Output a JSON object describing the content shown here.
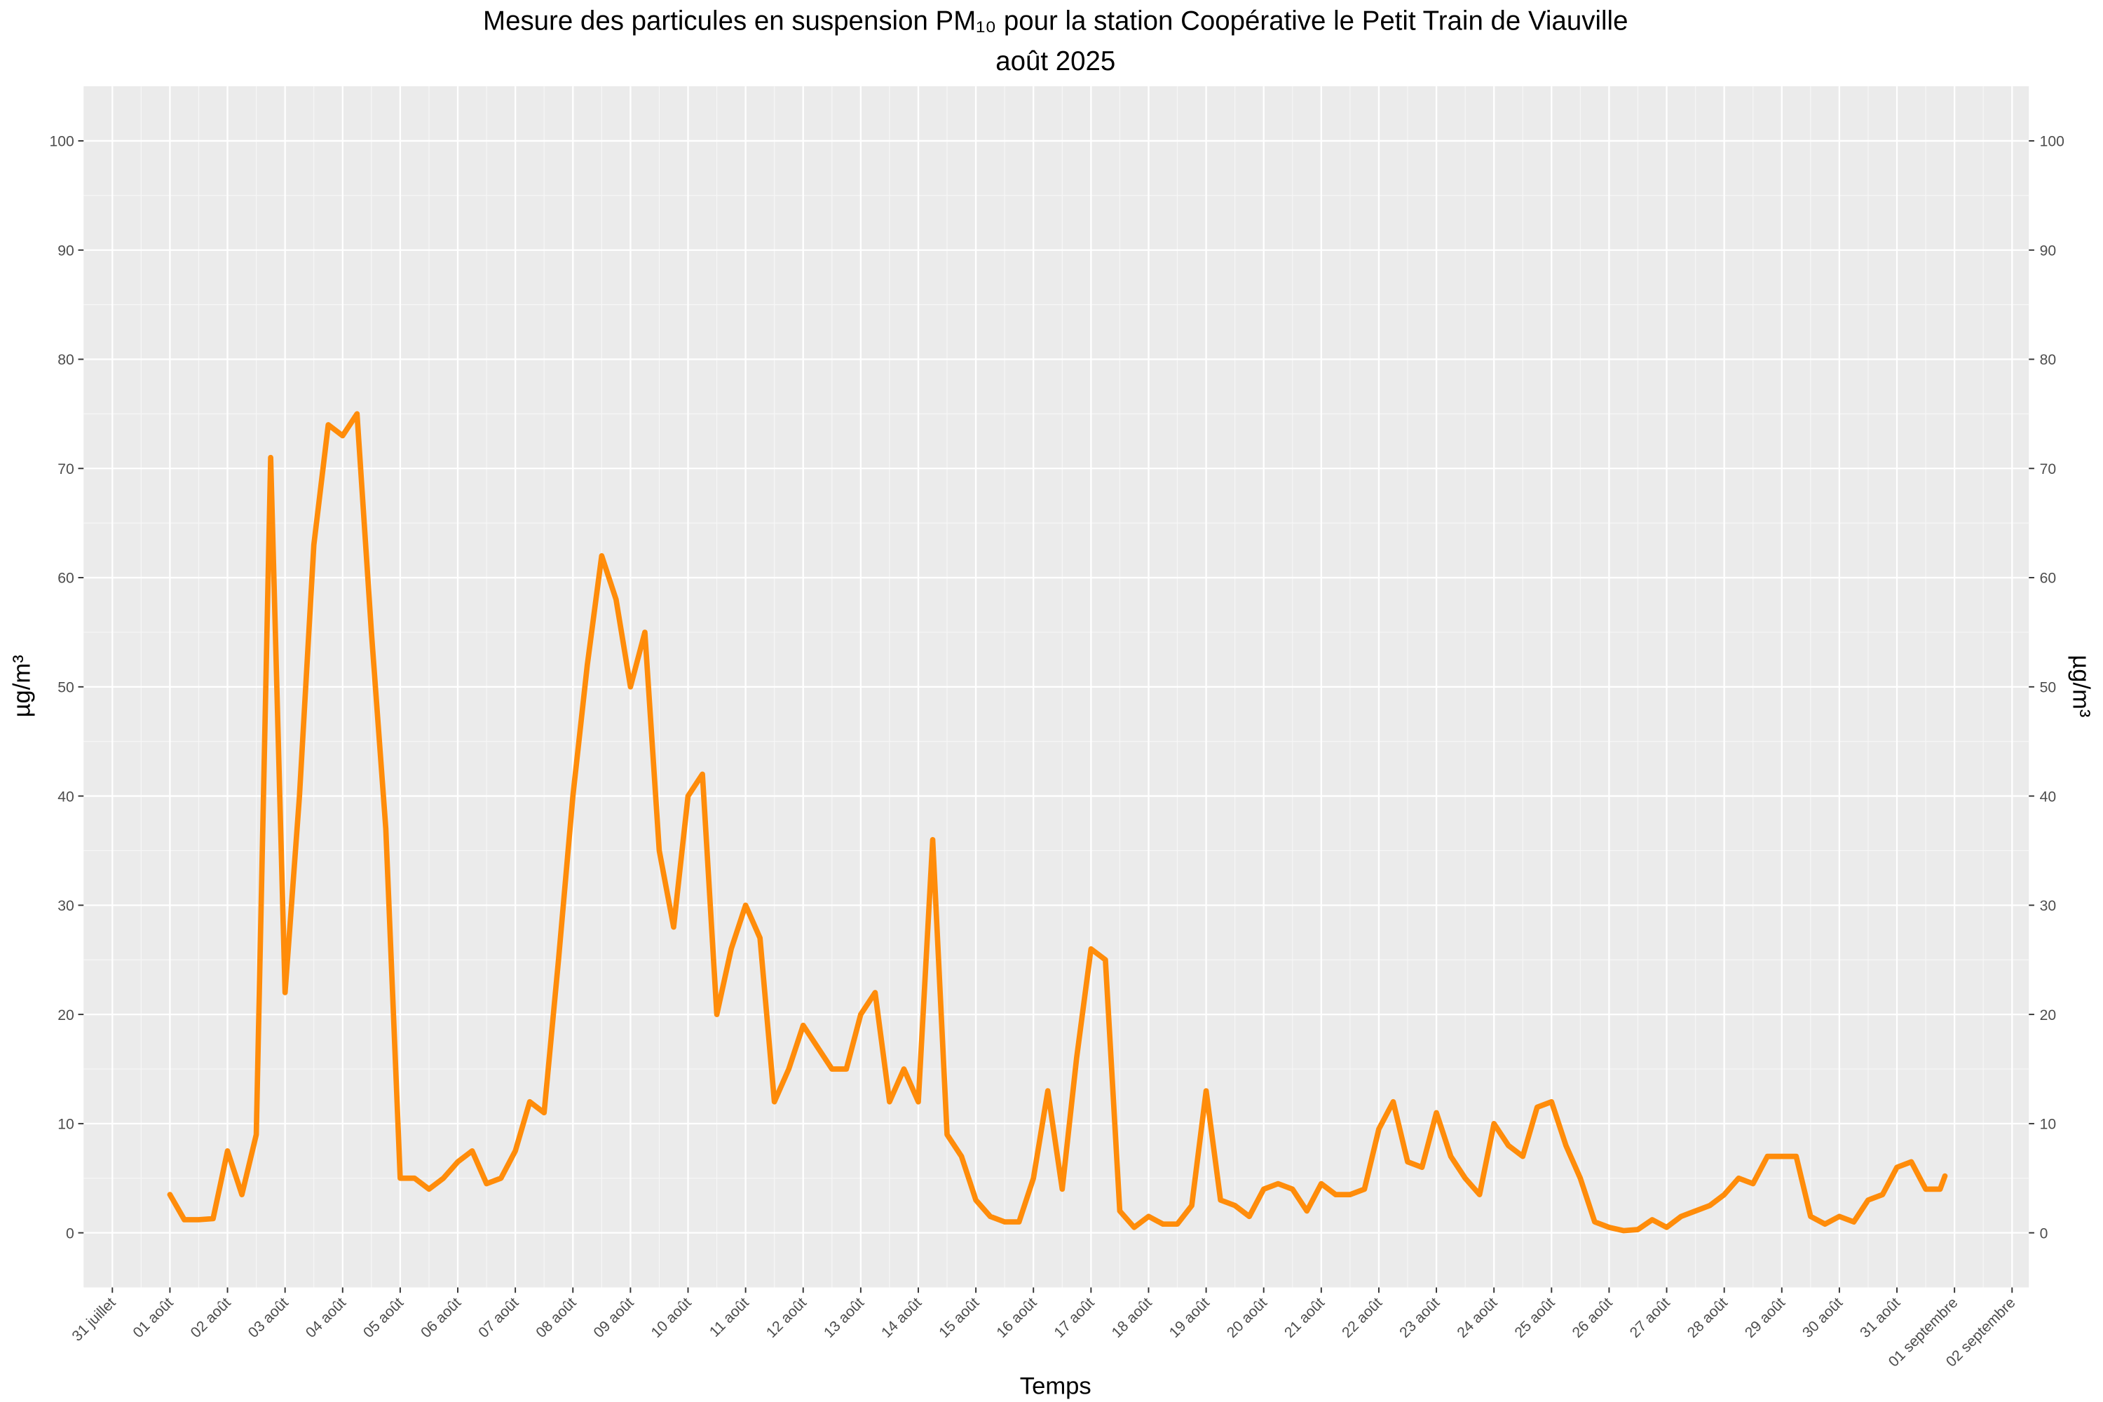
{
  "chart_data": {
    "type": "line",
    "title": "Mesure des particules en suspension  PM₁₀  pour la station Coopérative le Petit Train de Viauville",
    "subtitle": "août 2025",
    "xlabel": "Temps",
    "ylabel": "µg/m³",
    "y2label": "µg/m³",
    "color": "#ff8c0a",
    "grid": true,
    "xlim": [
      "2025-07-30T12:00",
      "2025-09-02T07:00"
    ],
    "xticks": [
      {
        "value": "2025-07-31",
        "label": "31 juillet"
      },
      {
        "value": "2025-08-01",
        "label": "01 août"
      },
      {
        "value": "2025-08-02",
        "label": "02 août"
      },
      {
        "value": "2025-08-03",
        "label": "03 août"
      },
      {
        "value": "2025-08-04",
        "label": "04 août"
      },
      {
        "value": "2025-08-05",
        "label": "05 août"
      },
      {
        "value": "2025-08-06",
        "label": "06 août"
      },
      {
        "value": "2025-08-07",
        "label": "07 août"
      },
      {
        "value": "2025-08-08",
        "label": "08 août"
      },
      {
        "value": "2025-08-09",
        "label": "09 août"
      },
      {
        "value": "2025-08-10",
        "label": "10 août"
      },
      {
        "value": "2025-08-11",
        "label": "11 août"
      },
      {
        "value": "2025-08-12",
        "label": "12 août"
      },
      {
        "value": "2025-08-13",
        "label": "13 août"
      },
      {
        "value": "2025-08-14",
        "label": "14 août"
      },
      {
        "value": "2025-08-15",
        "label": "15 août"
      },
      {
        "value": "2025-08-16",
        "label": "16 août"
      },
      {
        "value": "2025-08-17",
        "label": "17 août"
      },
      {
        "value": "2025-08-18",
        "label": "18 août"
      },
      {
        "value": "2025-08-19",
        "label": "19 août"
      },
      {
        "value": "2025-08-20",
        "label": "20 août"
      },
      {
        "value": "2025-08-21",
        "label": "21 août"
      },
      {
        "value": "2025-08-22",
        "label": "22 août"
      },
      {
        "value": "2025-08-23",
        "label": "23 août"
      },
      {
        "value": "2025-08-24",
        "label": "24 août"
      },
      {
        "value": "2025-08-25",
        "label": "25 août"
      },
      {
        "value": "2025-08-26",
        "label": "26 août"
      },
      {
        "value": "2025-08-27",
        "label": "27 août"
      },
      {
        "value": "2025-08-28",
        "label": "28 août"
      },
      {
        "value": "2025-08-29",
        "label": "29 août"
      },
      {
        "value": "2025-08-30",
        "label": "30 août"
      },
      {
        "value": "2025-08-31",
        "label": "31 août"
      },
      {
        "value": "2025-09-01",
        "label": "01 septembre"
      },
      {
        "value": "2025-09-02",
        "label": "02 septembre"
      }
    ],
    "ylim": [
      -5,
      105
    ],
    "yticks": [
      0,
      10,
      20,
      30,
      40,
      50,
      60,
      70,
      80,
      90,
      100
    ],
    "y2lim": [
      -5,
      105
    ],
    "y2ticks": [
      0,
      10,
      20,
      30,
      40,
      50,
      60,
      70,
      80,
      90,
      100
    ],
    "x": [
      "2025-08-01T00:00",
      "2025-08-01T06:00",
      "2025-08-01T12:00",
      "2025-08-01T18:00",
      "2025-08-02T00:00",
      "2025-08-02T06:00",
      "2025-08-02T12:00",
      "2025-08-02T18:00",
      "2025-08-03T00:00",
      "2025-08-03T06:00",
      "2025-08-03T12:00",
      "2025-08-03T18:00",
      "2025-08-04T00:00",
      "2025-08-04T06:00",
      "2025-08-04T12:00",
      "2025-08-04T18:00",
      "2025-08-05T00:00",
      "2025-08-05T06:00",
      "2025-08-05T12:00",
      "2025-08-05T18:00",
      "2025-08-06T00:00",
      "2025-08-06T06:00",
      "2025-08-06T12:00",
      "2025-08-06T18:00",
      "2025-08-07T00:00",
      "2025-08-07T06:00",
      "2025-08-07T12:00",
      "2025-08-07T18:00",
      "2025-08-08T00:00",
      "2025-08-08T06:00",
      "2025-08-08T12:00",
      "2025-08-08T18:00",
      "2025-08-09T00:00",
      "2025-08-09T06:00",
      "2025-08-09T12:00",
      "2025-08-09T18:00",
      "2025-08-10T00:00",
      "2025-08-10T06:00",
      "2025-08-10T12:00",
      "2025-08-10T18:00",
      "2025-08-11T00:00",
      "2025-08-11T06:00",
      "2025-08-11T12:00",
      "2025-08-11T18:00",
      "2025-08-12T00:00",
      "2025-08-12T06:00",
      "2025-08-12T12:00",
      "2025-08-12T18:00",
      "2025-08-13T00:00",
      "2025-08-13T06:00",
      "2025-08-13T12:00",
      "2025-08-13T18:00",
      "2025-08-14T00:00",
      "2025-08-14T06:00",
      "2025-08-14T12:00",
      "2025-08-14T18:00",
      "2025-08-15T00:00",
      "2025-08-15T06:00",
      "2025-08-15T12:00",
      "2025-08-15T18:00",
      "2025-08-16T00:00",
      "2025-08-16T06:00",
      "2025-08-16T12:00",
      "2025-08-16T18:00",
      "2025-08-17T00:00",
      "2025-08-17T06:00",
      "2025-08-17T12:00",
      "2025-08-17T18:00",
      "2025-08-18T00:00",
      "2025-08-18T06:00",
      "2025-08-18T12:00",
      "2025-08-18T18:00",
      "2025-08-19T00:00",
      "2025-08-19T06:00",
      "2025-08-19T12:00",
      "2025-08-19T18:00",
      "2025-08-20T00:00",
      "2025-08-20T06:00",
      "2025-08-20T12:00",
      "2025-08-20T18:00",
      "2025-08-21T00:00",
      "2025-08-21T06:00",
      "2025-08-21T12:00",
      "2025-08-21T18:00",
      "2025-08-22T00:00",
      "2025-08-22T06:00",
      "2025-08-22T12:00",
      "2025-08-22T18:00",
      "2025-08-23T00:00",
      "2025-08-23T06:00",
      "2025-08-23T12:00",
      "2025-08-23T18:00",
      "2025-08-24T00:00",
      "2025-08-24T06:00",
      "2025-08-24T12:00",
      "2025-08-24T18:00",
      "2025-08-25T00:00",
      "2025-08-25T06:00",
      "2025-08-25T12:00",
      "2025-08-25T18:00",
      "2025-08-26T00:00",
      "2025-08-26T06:00",
      "2025-08-26T12:00",
      "2025-08-26T18:00",
      "2025-08-27T00:00",
      "2025-08-27T06:00",
      "2025-08-27T12:00",
      "2025-08-27T18:00",
      "2025-08-28T00:00",
      "2025-08-28T06:00",
      "2025-08-28T12:00",
      "2025-08-28T18:00",
      "2025-08-29T00:00",
      "2025-08-29T06:00",
      "2025-08-29T12:00",
      "2025-08-29T18:00",
      "2025-08-30T00:00",
      "2025-08-30T06:00",
      "2025-08-30T12:00",
      "2025-08-30T18:00",
      "2025-08-31T00:00",
      "2025-08-31T06:00",
      "2025-08-31T12:00",
      "2025-08-31T18:00",
      "2025-08-31T20:00"
    ],
    "values": [
      3.5,
      1.2,
      1.2,
      1.3,
      7.5,
      3.5,
      9,
      71,
      22,
      40,
      63,
      74,
      73,
      75,
      55,
      37,
      5,
      5,
      4,
      5,
      6.5,
      7.5,
      4.5,
      5,
      7.5,
      12,
      11,
      25,
      40,
      52,
      62,
      58,
      50,
      55,
      35,
      28,
      40,
      42,
      20,
      26,
      30,
      27,
      12,
      15,
      19,
      17,
      15,
      15,
      20,
      22,
      12,
      15,
      12,
      36,
      9,
      7,
      3,
      1.5,
      1,
      1,
      5,
      13,
      4,
      16,
      26,
      25,
      2,
      0.5,
      1.5,
      0.8,
      0.8,
      2.5,
      13,
      3,
      2.5,
      1.5,
      4,
      4.5,
      4,
      2,
      4.5,
      3.5,
      3.5,
      4,
      9.5,
      12,
      6.5,
      6,
      11,
      7,
      5,
      3.5,
      10,
      8,
      7,
      11.5,
      12,
      8,
      5,
      1,
      0.5,
      0.2,
      0.3,
      1.2,
      0.5,
      1.5,
      2,
      2.5,
      3.5,
      5,
      4.5,
      7,
      7,
      7,
      1.5,
      0.8,
      1.5,
      1,
      3,
      3.5,
      6,
      6.5,
      4,
      4,
      5.2
    ]
  }
}
